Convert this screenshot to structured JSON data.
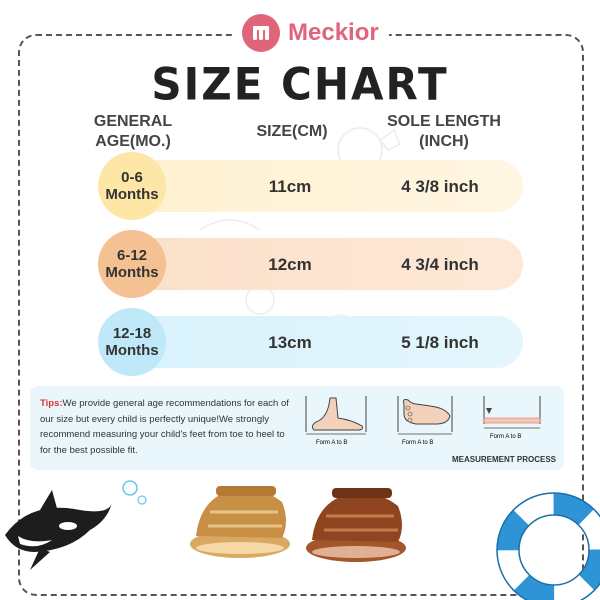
{
  "brand": {
    "name": "Meckior",
    "logo_letter": "M"
  },
  "title": "SIZE CHART",
  "headers": {
    "age": "GENERAL AGE(MO.)",
    "size": "SIZE(CM)",
    "sole": "SOLE LENGTH (INCH)"
  },
  "rows": [
    {
      "age_line1": "0-6",
      "age_line2": "Months",
      "size": "11cm",
      "sole": "4 3/8 inch"
    },
    {
      "age_line1": "6-12",
      "age_line2": "Months",
      "size": "12cm",
      "sole": "4 3/4 inch"
    },
    {
      "age_line1": "12-18",
      "age_line2": "Months",
      "size": "13cm",
      "sole": "5 1/8 inch"
    }
  ],
  "tips": {
    "label": "Tips:",
    "text": "We provide general age recommendations for each of our size but every child is perfectly unique!We strongly recommend measuring your child's feet from toe to heel to for the best possible fit."
  },
  "measurement": {
    "form_label": "Form A to B",
    "caption": "MEASUREMENT PROCESS"
  },
  "colors": {
    "brand": "#e0647a",
    "row1": "#fde6a6",
    "row2": "#f4c192",
    "row3": "#bfe9f8",
    "tips_bg": "#e9f6fb"
  }
}
